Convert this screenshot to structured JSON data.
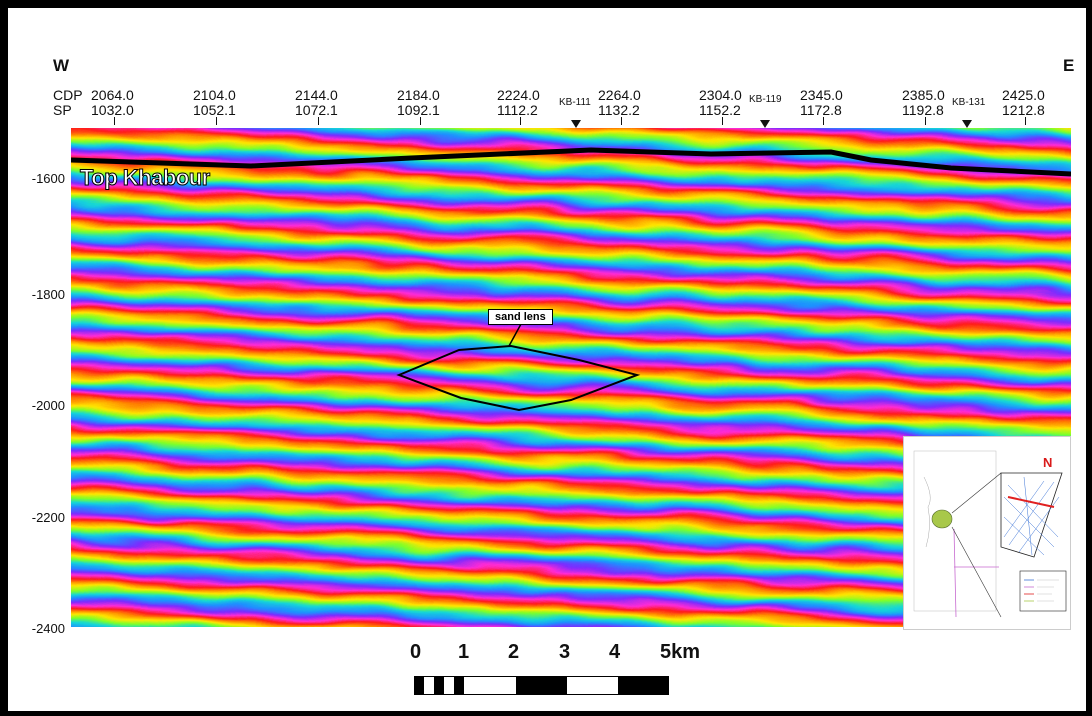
{
  "header": {
    "west": "W",
    "east": "E",
    "cdp_label": "CDP",
    "sp_label": "SP",
    "columns": [
      {
        "cdp": "2064.0",
        "sp": "1032.0"
      },
      {
        "cdp": "2104.0",
        "sp": "1052.1"
      },
      {
        "cdp": "2144.0",
        "sp": "1072.1"
      },
      {
        "cdp": "2184.0",
        "sp": "1092.1"
      },
      {
        "cdp": "2224.0",
        "sp": "1112.2"
      },
      {
        "cdp": "2264.0",
        "sp": "1132.2"
      },
      {
        "cdp": "2304.0",
        "sp": "1152.2"
      },
      {
        "cdp": "2345.0",
        "sp": "1172.8"
      },
      {
        "cdp": "2385.0",
        "sp": "1192.8"
      },
      {
        "cdp": "2425.0",
        "sp": "1212.8"
      }
    ],
    "wells": [
      "KB-111",
      "KB-119",
      "KB-131"
    ]
  },
  "depth_axis": [
    "-1600",
    "-1800",
    "-2000",
    "-2200",
    "-2400"
  ],
  "annotations": {
    "horizon": "Top Khabour",
    "sand_lens": "sand lens"
  },
  "scale_bar": {
    "labels": [
      "0",
      "1",
      "2",
      "3",
      "4",
      "5km"
    ]
  },
  "inset_map": {
    "north": "N"
  },
  "colors": {
    "stripe_cycle": [
      "#ff1a1a",
      "#ff8c00",
      "#ffe600",
      "#7dff2a",
      "#14d7d7",
      "#1e90ff",
      "#7a2bff",
      "#ff2bd6"
    ],
    "horizon_line": "#000000"
  }
}
